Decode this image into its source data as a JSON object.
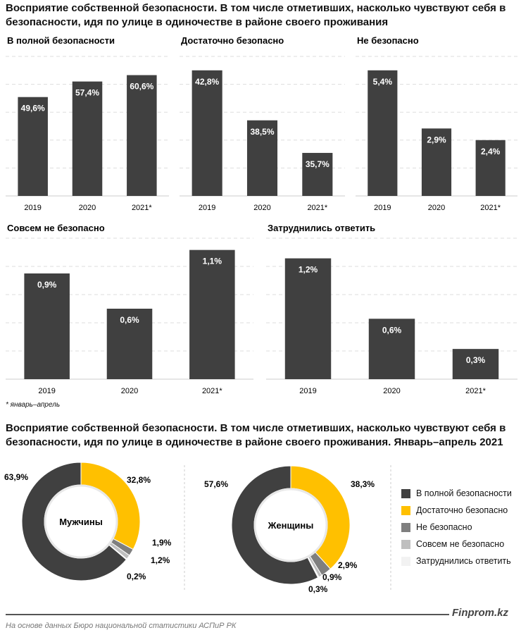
{
  "top_title": "Восприятие собственной безопасности. В том числе отметивших, насколько чувствуют себя в безопасности, идя по улице в одиночестве в районе своего проживания",
  "footnote": "* январь–апрель",
  "bottom_title": "Восприятие собственной безопасности. В том числе отметивших, насколько чувствуют себя в безопасности, идя по улице в одиночестве в районе своего проживания. Январь–апрель 2021",
  "brand": "Finprom.kz",
  "source": "На основе данных Бюро национальной статистики АСПиР РК",
  "chart_data": [
    {
      "type": "bar",
      "title": "В полной безопасности",
      "categories": [
        "2019",
        "2020",
        "2021*"
      ],
      "values": [
        49.6,
        57.4,
        60.6
      ],
      "labels": [
        "49,6%",
        "57,4%",
        "60,6%"
      ],
      "ylim": [
        0,
        70
      ],
      "grid": true,
      "color": "#404040"
    },
    {
      "type": "bar",
      "title": "Достаточно безопасно",
      "categories": [
        "2019",
        "2020",
        "2021*"
      ],
      "values": [
        42.8,
        38.5,
        35.7
      ],
      "labels": [
        "42,8%",
        "38,5%",
        "35,7%"
      ],
      "ylim": [
        32,
        44
      ],
      "grid": true,
      "color": "#404040"
    },
    {
      "type": "bar",
      "title": "Не безопасно",
      "categories": [
        "2019",
        "2020",
        "2021*"
      ],
      "values": [
        5.4,
        2.9,
        2.4
      ],
      "labels": [
        "5,4%",
        "2,9%",
        "2,4%"
      ],
      "ylim": [
        0,
        6
      ],
      "grid": true,
      "color": "#404040"
    },
    {
      "type": "bar",
      "title": "Совсем не безопасно",
      "categories": [
        "2019",
        "2020",
        "2021*"
      ],
      "values": [
        0.9,
        0.6,
        1.1
      ],
      "labels": [
        "0,9%",
        "0,6%",
        "1,1%"
      ],
      "ylim": [
        0,
        1.2
      ],
      "grid": true,
      "color": "#404040"
    },
    {
      "type": "bar",
      "title": "Затруднились ответить",
      "categories": [
        "2019",
        "2020",
        "2021*"
      ],
      "values": [
        1.2,
        0.6,
        0.3
      ],
      "labels": [
        "1,2%",
        "0,6%",
        "0,3%"
      ],
      "ylim": [
        0,
        1.4
      ],
      "grid": true,
      "color": "#404040"
    },
    {
      "type": "pie",
      "title": "Мужчины",
      "categories": [
        "Достаточно безопасно",
        "Не безопасно",
        "Совсем не безопасно",
        "Затруднились ответить",
        "В полной безопасности"
      ],
      "values": [
        32.8,
        1.9,
        1.2,
        0.2,
        63.9
      ],
      "labels": [
        "32,8%",
        "1,9%",
        "1,2%",
        "0,2%",
        "63,9%"
      ]
    },
    {
      "type": "pie",
      "title": "Женщины",
      "categories": [
        "Достаточно безопасно",
        "Не безопасно",
        "Совсем не безопасно",
        "Затруднились ответить",
        "В полной безопасности"
      ],
      "values": [
        38.3,
        2.9,
        0.9,
        0.3,
        57.6
      ],
      "labels": [
        "38,3%",
        "2,9%",
        "0,9%",
        "0,3%",
        "57,6%"
      ]
    }
  ],
  "legend": [
    {
      "label": "В полной безопасности",
      "color": "#404040"
    },
    {
      "label": "Достаточно безопасно",
      "color": "#FFC000"
    },
    {
      "label": "Не безопасно",
      "color": "#7F7F7F"
    },
    {
      "label": "Совсем не безопасно",
      "color": "#BFBFBF"
    },
    {
      "label": "Затруднились ответить",
      "color": "#F2F2F2"
    }
  ]
}
